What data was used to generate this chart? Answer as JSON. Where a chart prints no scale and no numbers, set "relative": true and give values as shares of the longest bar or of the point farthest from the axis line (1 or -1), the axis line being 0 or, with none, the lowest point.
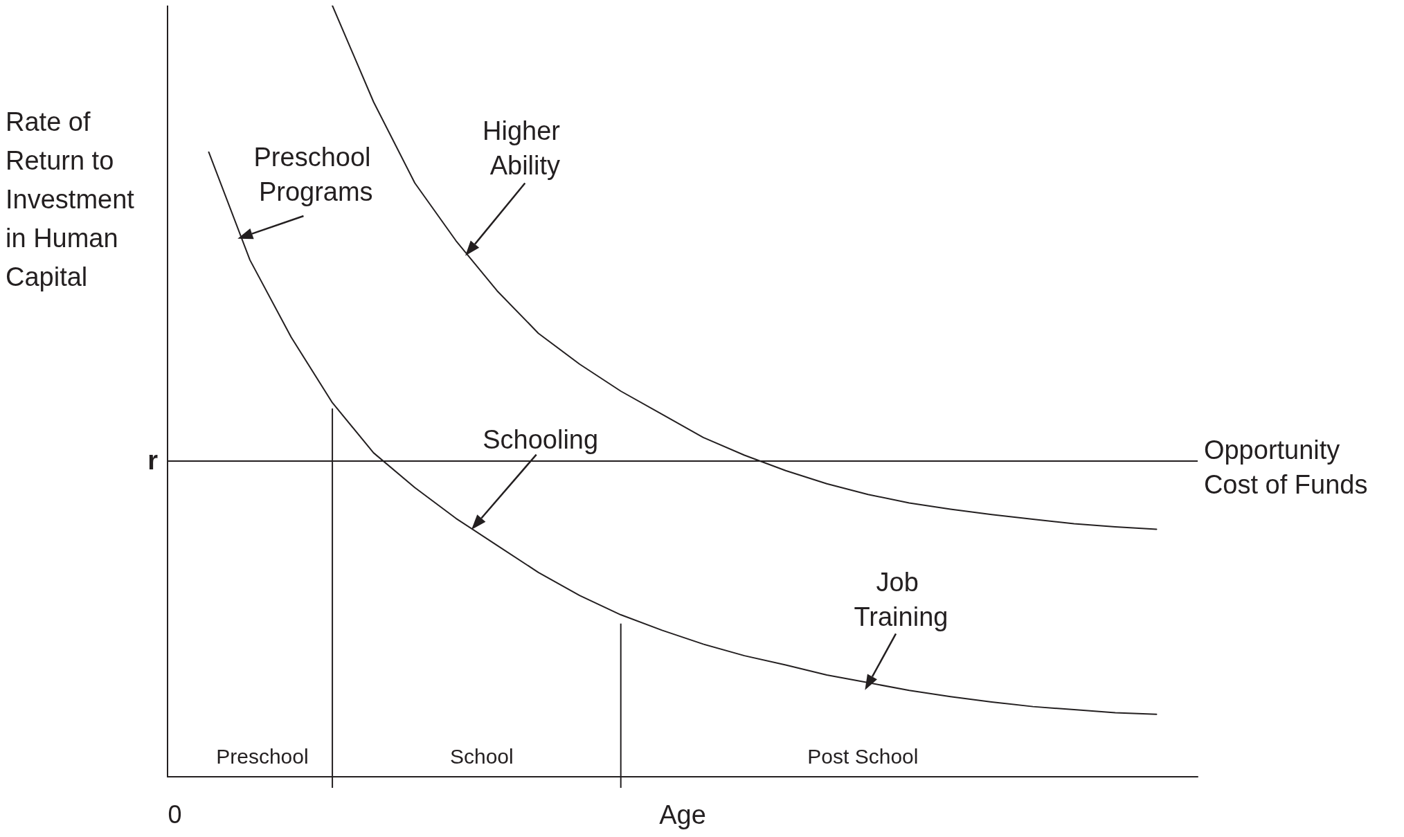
{
  "chart_data": {
    "type": "line",
    "relative": true,
    "xlabel": "Age",
    "ylabel": "Rate of Return to Investment in Human Capital",
    "marker": "none",
    "line_style": "solid",
    "grid": false,
    "categories": [
      null,
      null,
      null,
      null,
      null,
      null,
      null,
      null,
      null,
      null,
      null,
      null,
      null,
      null,
      null,
      null,
      null,
      null,
      null,
      null,
      null,
      null,
      null,
      null,
      null,
      null
    ],
    "series": [
      {
        "color": "#231f20",
        "values": [
          null,
          null,
          null,
          null,
          1,
          0.875,
          0.77,
          0.695,
          0.63,
          0.575,
          0.535,
          0.5,
          0.47,
          0.44,
          0.417,
          0.397,
          0.38,
          0.366,
          0.355,
          0.347,
          0.34,
          0.334,
          0.328,
          0.324,
          0.321,
          null
        ]
      },
      {
        "color": "#231f20",
        "values": [
          null,
          0.81,
          0.67,
          0.57,
          0.485,
          0.42,
          0.375,
          0.335,
          0.3,
          0.265,
          0.235,
          0.21,
          0.19,
          0.172,
          0.157,
          0.145,
          0.132,
          0.122,
          0.112,
          0.104,
          0.097,
          0.091,
          0.087,
          0.083,
          0.081,
          null
        ]
      }
    ],
    "ref_lines": [
      {
        "axis": "y",
        "value": 0.41,
        "label": "r"
      }
    ],
    "annotations": [
      "0",
      "Opportunity Cost of Funds",
      "Preschool Programs",
      "Higher Ability",
      "Schooling",
      "Job Training",
      "Preschool",
      "School",
      "Post School"
    ]
  }
}
